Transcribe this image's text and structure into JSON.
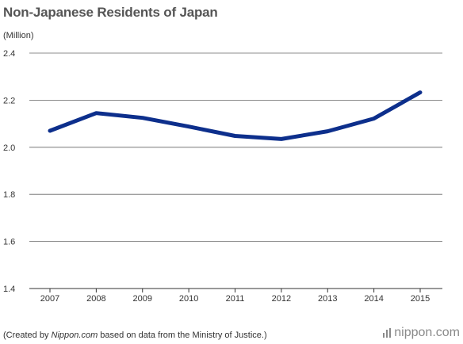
{
  "header": {
    "title": "Non-Japanese Residents of Japan",
    "unit": "(Million)"
  },
  "footer": {
    "prefix": "(Created by ",
    "source": "Nippon.com",
    "suffix": " based on data from the Ministry of Justice.)"
  },
  "logo": {
    "text": "nippon.com",
    "icon": "nippon-bars-icon"
  },
  "colors": {
    "line": "#0d2f8c",
    "grid": "#666666",
    "text": "#333333"
  },
  "chart_data": {
    "type": "line",
    "title": "Non-Japanese Residents of Japan",
    "ylabel": "(Million)",
    "xlabel": "",
    "categories": [
      "2007",
      "2008",
      "2009",
      "2010",
      "2011",
      "2012",
      "2013",
      "2014",
      "2015"
    ],
    "series": [
      {
        "values": [
          2.07,
          2.145,
          2.125,
          2.088,
          2.048,
          2.035,
          2.068,
          2.122,
          2.233
        ]
      }
    ],
    "ylim": [
      1.4,
      2.4
    ],
    "yticks": [
      "1.4",
      "1.6",
      "1.8",
      "2.0",
      "2.2",
      "2.4"
    ],
    "grid": true,
    "legend": "none"
  }
}
